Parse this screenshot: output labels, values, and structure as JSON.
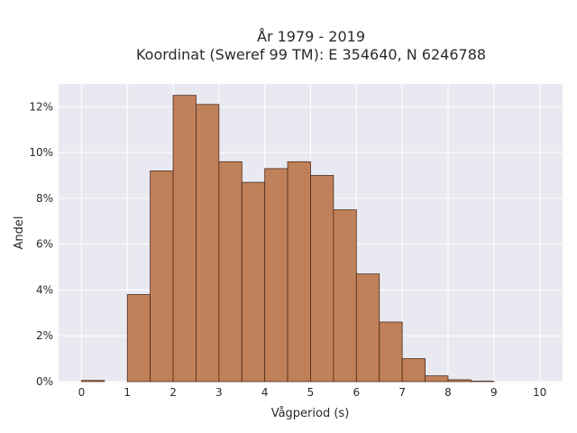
{
  "chart_data": {
    "type": "bar",
    "title_line1": "År 1979 - 2019",
    "title_line2": "Koordinat (Sweref 99 TM): E 354640, N 6246788",
    "xlabel": "Vågperiod (s)",
    "ylabel": "Andel",
    "bin_width": 0.5,
    "bins": [
      {
        "start": 0.0,
        "value": 0.05
      },
      {
        "start": 0.5,
        "value": 0.0
      },
      {
        "start": 1.0,
        "value": 3.8
      },
      {
        "start": 1.5,
        "value": 9.2
      },
      {
        "start": 2.0,
        "value": 12.5
      },
      {
        "start": 2.5,
        "value": 12.1
      },
      {
        "start": 3.0,
        "value": 9.6
      },
      {
        "start": 3.5,
        "value": 8.7
      },
      {
        "start": 4.0,
        "value": 9.3
      },
      {
        "start": 4.5,
        "value": 9.6
      },
      {
        "start": 5.0,
        "value": 9.0
      },
      {
        "start": 5.5,
        "value": 7.5
      },
      {
        "start": 6.0,
        "value": 4.7
      },
      {
        "start": 6.5,
        "value": 2.6
      },
      {
        "start": 7.0,
        "value": 1.0
      },
      {
        "start": 7.5,
        "value": 0.25
      },
      {
        "start": 8.0,
        "value": 0.08
      },
      {
        "start": 8.5,
        "value": 0.02
      }
    ],
    "xlim": [
      -0.5,
      10.5
    ],
    "ylim": [
      0,
      13
    ],
    "x_ticks": [
      0,
      1,
      2,
      3,
      4,
      5,
      6,
      7,
      8,
      9,
      10
    ],
    "y_ticks": [
      0,
      2,
      4,
      6,
      8,
      10,
      12
    ],
    "y_tick_suffix": "%",
    "grid": true,
    "colors": {
      "bar_fill": "#c0815a",
      "bar_edge": "#4a2a18",
      "plot_bg": "#e9e9f1",
      "grid": "#ffffff"
    }
  }
}
